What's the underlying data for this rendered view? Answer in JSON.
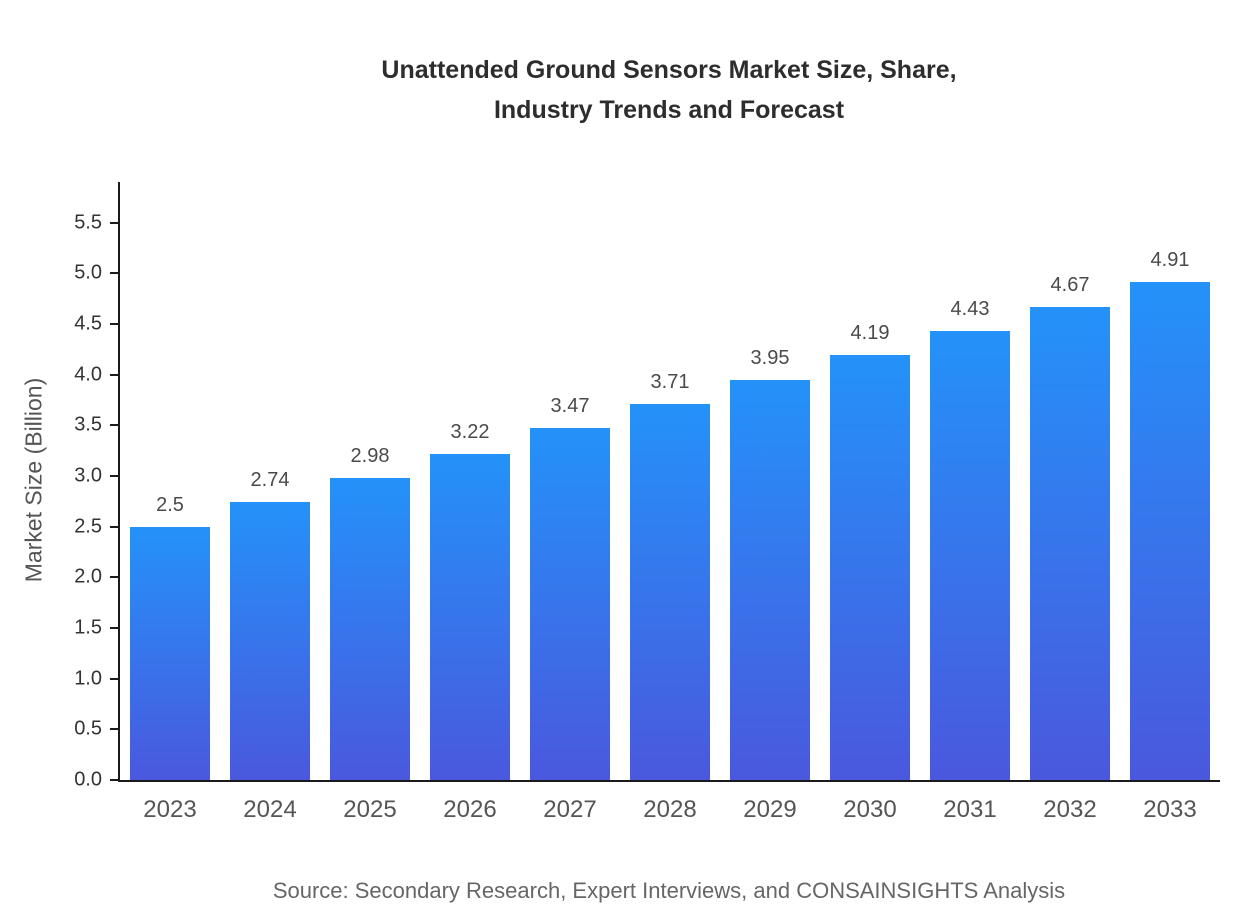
{
  "chart_data": {
    "type": "bar",
    "title_lines": [
      "Unattended Ground Sensors Market Size, Share,",
      "Industry Trends and Forecast"
    ],
    "title": "Unattended Ground Sensors Market Size, Share, Industry Trends and Forecast",
    "categories": [
      "2023",
      "2024",
      "2025",
      "2026",
      "2027",
      "2028",
      "2029",
      "2030",
      "2031",
      "2032",
      "2033"
    ],
    "values": [
      2.5,
      2.74,
      2.98,
      3.22,
      3.47,
      3.71,
      3.95,
      4.19,
      4.43,
      4.67,
      4.91
    ],
    "value_labels": [
      "2.5",
      "2.74",
      "2.98",
      "3.22",
      "3.47",
      "3.71",
      "3.95",
      "4.19",
      "4.43",
      "4.67",
      "4.91"
    ],
    "xlabel": "",
    "ylabel": "Market Size (Billion)",
    "y_ticks": [
      0.0,
      0.5,
      1.0,
      1.5,
      2.0,
      2.5,
      3.0,
      3.5,
      4.0,
      4.5,
      5.0,
      5.5
    ],
    "y_tick_labels": [
      "0.0",
      "0.5",
      "1.0",
      "1.5",
      "2.0",
      "2.5",
      "3.0",
      "3.5",
      "4.0",
      "4.5",
      "5.0",
      "5.5"
    ],
    "ylim": [
      0,
      5.9
    ],
    "grid": false,
    "legend": null,
    "bar_color_top": "#2492f9",
    "bar_color_bottom": "#4a58dd",
    "source": "Source: Secondary Research, Expert Interviews, and CONSAINSIGHTS Analysis"
  }
}
